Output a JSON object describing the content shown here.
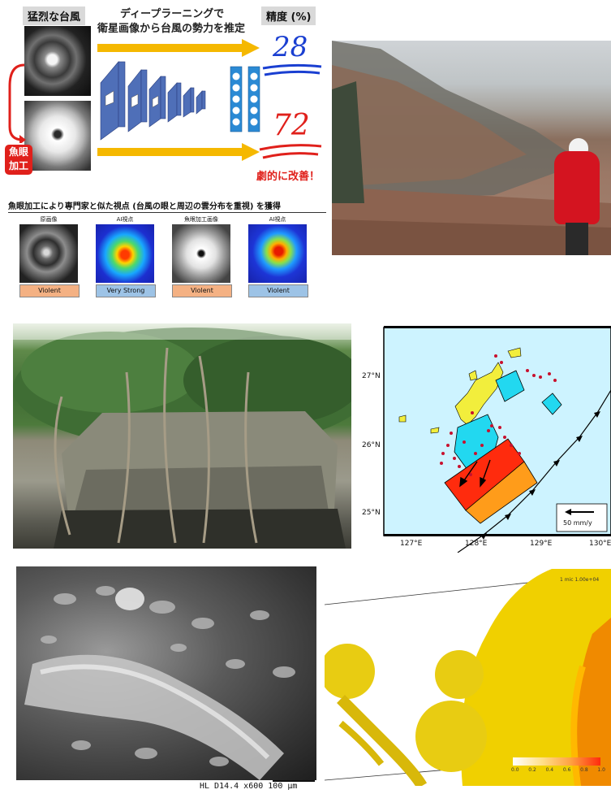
{
  "panel1": {
    "label_typhoon": "猛烈な台風",
    "title_line1": "ディープラーニングで",
    "title_line2": "衛星画像から台風の勢力を推定",
    "label_accuracy": "精度 (%)",
    "value_before": "28",
    "value_after": "72",
    "fisheye_label_line1": "魚眼",
    "fisheye_label_line2": "加工",
    "improved_text": "劇的に改善！",
    "caption": "魚眼加工により専門家と似た視点 (台風の眼と周辺の雲分布を重視) を獲得",
    "thumbs": [
      {
        "caption": "原画像",
        "tag": "Violent",
        "tag_color": "#f4b183"
      },
      {
        "caption": "AI視点",
        "tag": "Very Strong",
        "tag_color": "#9dc3e6"
      },
      {
        "caption": "魚眼加工画像",
        "tag": "Violent",
        "tag_color": "#f4b183"
      },
      {
        "caption": "AI視点",
        "tag": "Violent",
        "tag_color": "#9dc3e6"
      }
    ],
    "colors": {
      "arrow": "#f5b800",
      "cnn": "#4f6fb8",
      "number_blue": "#1a3fd1",
      "number_red": "#e0201b"
    }
  },
  "map": {
    "lat_labels": [
      "27°N",
      "26°N",
      "25°N"
    ],
    "lon_labels": [
      "127°E",
      "128°E",
      "129°E",
      "130°E"
    ],
    "legend_text": "50 mm/y",
    "colors": {
      "sea": "#cdf3ff",
      "land": "#f2ee3c",
      "cyan_block": "#22d8f0",
      "red_block": "#ff2b0d",
      "orange_block": "#ff9c1a",
      "quake": "#c8102e"
    }
  },
  "sem": {
    "scale_text": "HL   D14.4 x600   100 μm"
  },
  "render3d": {
    "colorbar_ticks": [
      "0.0",
      "0.2",
      "0.4",
      "0.6",
      "0.8",
      "1.0"
    ],
    "corner_text": "1 mic 1.00e+04"
  }
}
